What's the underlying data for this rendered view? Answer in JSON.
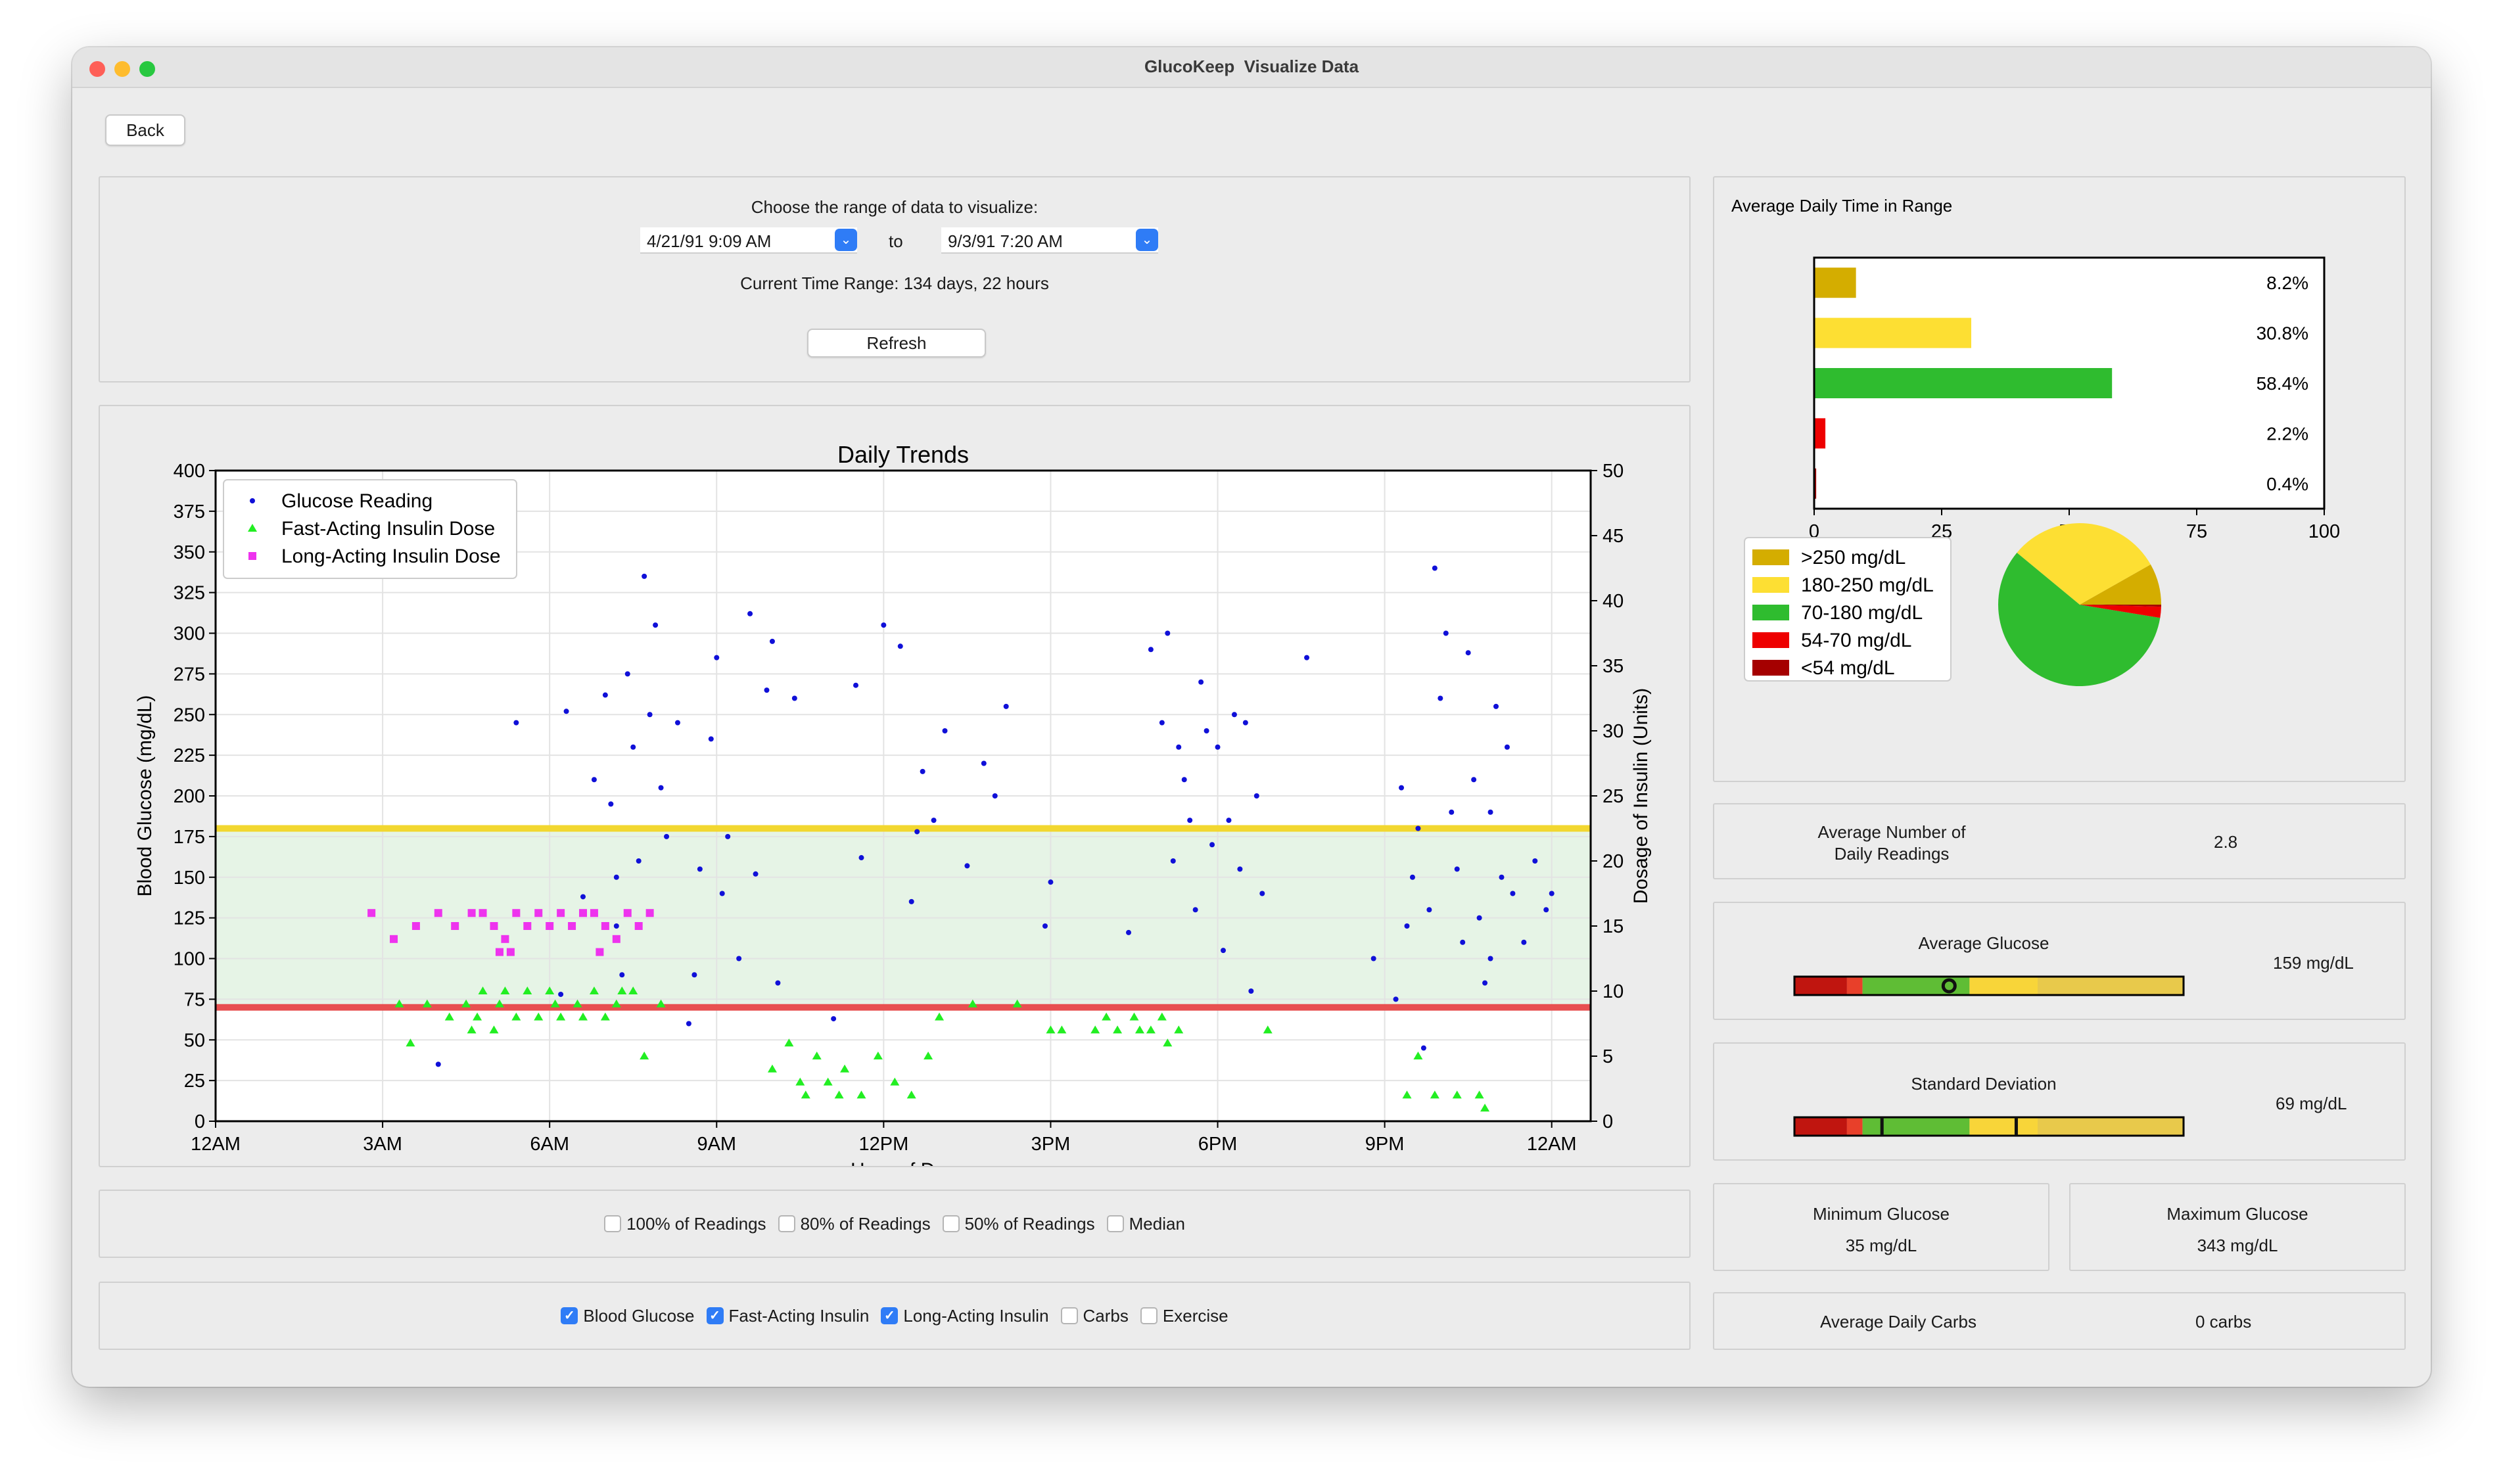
{
  "window": {
    "title": "GlucoKeep  Visualize Data",
    "controls": [
      {
        "name": "close",
        "color": "#fe5f57"
      },
      {
        "name": "minimize",
        "color": "#febc2e"
      },
      {
        "name": "zoom",
        "color": "#28c840"
      }
    ]
  },
  "back_label": "Back",
  "range": {
    "prompt": "Choose the range of data to visualize:",
    "start": "4/21/91 9:09 AM",
    "to_label": "to",
    "end": "9/3/91 7:20 AM",
    "current": "Current Time Range:  134 days, 22 hours",
    "refresh_label": "Refresh"
  },
  "percentile_options": [
    {
      "label": "100% of Readings",
      "checked": false
    },
    {
      "label": "80% of Readings",
      "checked": false
    },
    {
      "label": "50% of Readings",
      "checked": false
    },
    {
      "label": "Median",
      "checked": false
    }
  ],
  "data_options": [
    {
      "label": "Blood Glucose",
      "checked": true
    },
    {
      "label": "Fast-Acting Insulin",
      "checked": true
    },
    {
      "label": "Long-Acting Insulin",
      "checked": true
    },
    {
      "label": "Carbs",
      "checked": false
    },
    {
      "label": "Exercise",
      "checked": false
    }
  ],
  "chart_data": [
    {
      "type": "scatter",
      "title": "Daily Trends",
      "xlabel": "Hour of Day",
      "ylabel": "Blood Glucose (mg/dL)",
      "ylabel_right": "Dosage of Insulin (Units)",
      "x_ticks": [
        "12AM",
        "3AM",
        "6AM",
        "9AM",
        "12PM",
        "3PM",
        "6PM",
        "9PM",
        "12AM"
      ],
      "xlim": [
        0,
        24.7
      ],
      "ylim": [
        0,
        400
      ],
      "ylim_right": [
        0,
        50
      ],
      "y_ticks": [
        0,
        25,
        50,
        75,
        100,
        125,
        150,
        175,
        200,
        225,
        250,
        275,
        300,
        325,
        350,
        375,
        400
      ],
      "y_ticks_right": [
        0,
        5,
        10,
        15,
        20,
        25,
        30,
        35,
        40,
        45,
        50
      ],
      "grid": true,
      "legend_position": "top-left",
      "target_range": {
        "low": 70,
        "high": 180,
        "low_color": "#e85050",
        "high_color": "#f2d730",
        "fill": "#e6f4e6"
      },
      "series": [
        {
          "name": "Glucose Reading",
          "axis": "left",
          "color": "#1010d8",
          "marker": "dot",
          "points": [
            [
              4.0,
              35
            ],
            [
              5.4,
              245
            ],
            [
              6.2,
              78
            ],
            [
              6.3,
              252
            ],
            [
              6.6,
              138
            ],
            [
              6.8,
              210
            ],
            [
              7.0,
              262
            ],
            [
              7.1,
              195
            ],
            [
              7.2,
              120
            ],
            [
              7.3,
              90
            ],
            [
              7.4,
              275
            ],
            [
              7.5,
              230
            ],
            [
              7.6,
              160
            ],
            [
              7.7,
              335
            ],
            [
              7.8,
              250
            ],
            [
              7.9,
              305
            ],
            [
              8.0,
              205
            ],
            [
              8.1,
              175
            ],
            [
              8.3,
              245
            ],
            [
              8.5,
              60
            ],
            [
              8.7,
              155
            ],
            [
              8.9,
              235
            ],
            [
              9.0,
              285
            ],
            [
              9.1,
              140
            ],
            [
              9.2,
              175
            ],
            [
              9.4,
              100
            ],
            [
              9.6,
              312
            ],
            [
              9.7,
              152
            ],
            [
              9.9,
              265
            ],
            [
              10.0,
              295
            ],
            [
              10.1,
              85
            ],
            [
              10.4,
              260
            ],
            [
              11.1,
              63
            ],
            [
              11.5,
              268
            ],
            [
              11.6,
              162
            ],
            [
              12.0,
              305
            ],
            [
              12.3,
              292
            ],
            [
              12.5,
              135
            ],
            [
              12.6,
              178
            ],
            [
              12.7,
              215
            ],
            [
              12.9,
              185
            ],
            [
              13.1,
              240
            ],
            [
              13.5,
              157
            ],
            [
              13.8,
              220
            ],
            [
              14.0,
              200
            ],
            [
              14.2,
              255
            ],
            [
              14.9,
              120
            ],
            [
              15.0,
              147
            ],
            [
              16.4,
              116
            ],
            [
              16.8,
              290
            ],
            [
              17.0,
              245
            ],
            [
              17.1,
              300
            ],
            [
              17.2,
              160
            ],
            [
              17.3,
              230
            ],
            [
              17.4,
              210
            ],
            [
              17.5,
              185
            ],
            [
              17.6,
              130
            ],
            [
              17.7,
              270
            ],
            [
              17.8,
              240
            ],
            [
              17.9,
              170
            ],
            [
              18.0,
              230
            ],
            [
              18.1,
              105
            ],
            [
              18.2,
              185
            ],
            [
              18.3,
              250
            ],
            [
              18.4,
              155
            ],
            [
              18.5,
              245
            ],
            [
              18.6,
              80
            ],
            [
              18.7,
              200
            ],
            [
              18.8,
              140
            ],
            [
              19.6,
              285
            ],
            [
              20.8,
              100
            ],
            [
              21.2,
              75
            ],
            [
              21.3,
              205
            ],
            [
              21.4,
              120
            ],
            [
              21.6,
              180
            ],
            [
              21.7,
              45
            ],
            [
              21.8,
              130
            ],
            [
              21.9,
              340
            ],
            [
              22.0,
              260
            ],
            [
              22.1,
              300
            ],
            [
              22.2,
              190
            ],
            [
              22.3,
              155
            ],
            [
              22.4,
              110
            ],
            [
              22.5,
              288
            ],
            [
              22.6,
              210
            ],
            [
              22.7,
              125
            ],
            [
              22.8,
              85
            ],
            [
              22.9,
              100
            ],
            [
              23.0,
              255
            ],
            [
              23.1,
              150
            ],
            [
              23.2,
              230
            ],
            [
              23.3,
              140
            ],
            [
              23.5,
              110
            ],
            [
              23.7,
              160
            ],
            [
              23.9,
              130
            ],
            [
              24.0,
              140
            ],
            [
              21.5,
              150
            ],
            [
              22.9,
              190
            ],
            [
              7.2,
              150
            ],
            [
              8.6,
              90
            ]
          ]
        },
        {
          "name": "Fast-Acting Insulin Dose",
          "axis": "right",
          "color": "#22ee22",
          "marker": "triangle",
          "points": [
            [
              3.3,
              9
            ],
            [
              3.5,
              6
            ],
            [
              3.8,
              9
            ],
            [
              4.2,
              8
            ],
            [
              4.5,
              9
            ],
            [
              4.7,
              8
            ],
            [
              4.8,
              10
            ],
            [
              5.0,
              7
            ],
            [
              5.2,
              10
            ],
            [
              5.4,
              8
            ],
            [
              5.6,
              10
            ],
            [
              5.8,
              8
            ],
            [
              6.0,
              10
            ],
            [
              6.2,
              8
            ],
            [
              6.5,
              9
            ],
            [
              6.8,
              10
            ],
            [
              7.0,
              8
            ],
            [
              7.2,
              9
            ],
            [
              7.5,
              10
            ],
            [
              7.7,
              5
            ],
            [
              8.0,
              9
            ],
            [
              4.6,
              7
            ],
            [
              5.1,
              9
            ],
            [
              6.1,
              9
            ],
            [
              6.6,
              8
            ],
            [
              7.3,
              10
            ],
            [
              10.0,
              4
            ],
            [
              10.3,
              6
            ],
            [
              10.5,
              3
            ],
            [
              10.8,
              5
            ],
            [
              11.0,
              3
            ],
            [
              11.3,
              4
            ],
            [
              11.6,
              2
            ],
            [
              11.9,
              5
            ],
            [
              12.2,
              3
            ],
            [
              12.5,
              2
            ],
            [
              12.8,
              5
            ],
            [
              13.0,
              8
            ],
            [
              13.6,
              9
            ],
            [
              14.4,
              9
            ],
            [
              15.0,
              7
            ],
            [
              15.2,
              7
            ],
            [
              15.8,
              7
            ],
            [
              16.0,
              8
            ],
            [
              16.2,
              7
            ],
            [
              16.5,
              8
            ],
            [
              16.8,
              7
            ],
            [
              17.0,
              8
            ],
            [
              17.3,
              7
            ],
            [
              18.9,
              7
            ],
            [
              21.6,
              5
            ],
            [
              21.4,
              2
            ],
            [
              21.9,
              2
            ],
            [
              22.3,
              2
            ],
            [
              22.7,
              2
            ],
            [
              22.8,
              1
            ],
            [
              16.6,
              7
            ],
            [
              17.1,
              6
            ],
            [
              10.6,
              2
            ],
            [
              11.2,
              2
            ]
          ]
        },
        {
          "name": "Long-Acting Insulin Dose",
          "axis": "right",
          "color": "#ee33ee",
          "marker": "square",
          "points": [
            [
              2.8,
              16
            ],
            [
              3.2,
              14
            ],
            [
              3.6,
              15
            ],
            [
              4.0,
              16
            ],
            [
              4.3,
              15
            ],
            [
              4.6,
              16
            ],
            [
              4.8,
              16
            ],
            [
              5.0,
              15
            ],
            [
              5.2,
              14
            ],
            [
              5.4,
              16
            ],
            [
              5.6,
              15
            ],
            [
              5.8,
              16
            ],
            [
              6.0,
              15
            ],
            [
              6.2,
              16
            ],
            [
              6.4,
              15
            ],
            [
              6.6,
              16
            ],
            [
              6.8,
              16
            ],
            [
              7.0,
              15
            ],
            [
              7.2,
              14
            ],
            [
              7.4,
              16
            ],
            [
              7.6,
              15
            ],
            [
              7.8,
              16
            ],
            [
              5.1,
              13
            ],
            [
              5.3,
              13
            ],
            [
              6.9,
              13
            ]
          ]
        }
      ]
    },
    {
      "type": "bar",
      "title": "Average Daily Time in Range",
      "orientation": "horizontal",
      "categories": [
        ">250 mg/dL",
        "180-250 mg/dL",
        "70-180 mg/dL",
        "54-70 mg/dL",
        "<54 mg/dL"
      ],
      "values": [
        8.2,
        30.8,
        58.4,
        2.2,
        0.4
      ],
      "value_labels": [
        "8.2%",
        "30.8%",
        "58.4%",
        "2.2%",
        "0.4%"
      ],
      "colors": [
        "#d4ad00",
        "#fddf33",
        "#2fbc2f",
        "#ee0000",
        "#a50000"
      ],
      "xlim": [
        0,
        100
      ],
      "x_ticks": [
        0,
        25,
        50,
        75,
        100
      ]
    },
    {
      "type": "pie",
      "legend": [
        ">250 mg/dL",
        "180-250 mg/dL",
        "70-180 mg/dL",
        "54-70 mg/dL",
        "<54 mg/dL"
      ],
      "values": [
        8.2,
        30.8,
        58.4,
        2.2,
        0.4
      ],
      "colors": [
        "#d4ad00",
        "#fddf33",
        "#2fbc2f",
        "#ee0000",
        "#a50000"
      ]
    }
  ],
  "stats": {
    "readings_label": "Average Number of\nDaily Readings",
    "readings_value": "2.8",
    "avg_label": "Average Glucose",
    "avg_value": "159 mg/dL",
    "avg_marker": 159,
    "sd_label": "Standard Deviation",
    "sd_value": "69 mg/dL",
    "sd_markers": [
      90,
      228
    ],
    "min_label": "Minimum Glucose",
    "min_value": "35 mg/dL",
    "max_label": "Maximum Glucose",
    "max_value": "343 mg/dL",
    "carbs_label": "Average Daily Carbs",
    "carbs_value": "0 carbs",
    "gauge_segments": [
      {
        "from": 0,
        "to": 54,
        "color": "#c0150f"
      },
      {
        "from": 54,
        "to": 70,
        "color": "#e8402a"
      },
      {
        "from": 70,
        "to": 180,
        "color": "#5fbd35"
      },
      {
        "from": 180,
        "to": 250,
        "color": "#f8d539"
      },
      {
        "from": 250,
        "to": 400,
        "color": "#e8c94b"
      }
    ],
    "gauge_range": [
      0,
      400
    ]
  }
}
